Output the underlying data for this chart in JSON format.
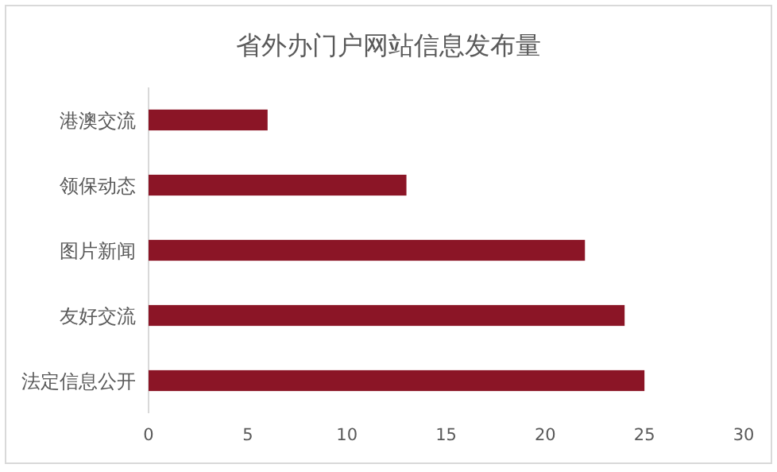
{
  "chart_data": {
    "type": "bar",
    "orientation": "horizontal",
    "title": "省外办门户网站信息发布量",
    "categories": [
      "港澳交流",
      "领保动态",
      "图片新闻",
      "友好交流",
      "法定信息公开"
    ],
    "values": [
      6,
      13,
      22,
      24,
      25
    ],
    "color": "#8b1526",
    "xlim": [
      0,
      30
    ],
    "xticks": [
      0,
      5,
      10,
      15,
      20,
      25,
      30
    ],
    "grid": false
  }
}
